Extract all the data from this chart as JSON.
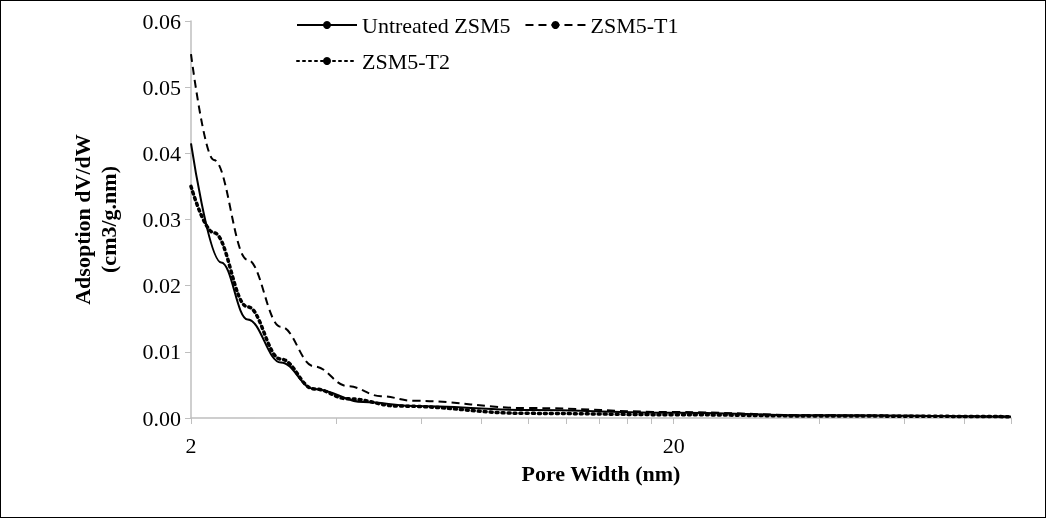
{
  "chart_data": {
    "type": "line",
    "xlabel": "Pore Width (nm)",
    "ylabel": "Adsoption dV/dW\n(cm3/g.nm)",
    "log": "x",
    "xlim": [
      2,
      100
    ],
    "xticks": [
      2,
      {
        "value": 4,
        "label": null
      },
      {
        "value": 6,
        "label": null
      },
      {
        "value": 8,
        "label": null
      },
      {
        "value": 10,
        "label": null
      },
      {
        "value": 12,
        "label": null
      },
      {
        "value": 14,
        "label": null
      },
      {
        "value": 16,
        "label": null
      },
      {
        "value": 18,
        "label": null
      },
      20,
      {
        "value": 40,
        "label": null
      },
      {
        "value": 60,
        "label": null
      },
      {
        "value": 80,
        "label": null
      },
      {
        "value": 100,
        "label": null
      }
    ],
    "ylim": [
      0,
      0.06
    ],
    "yticks": [
      {
        "value": 0,
        "label": "0.00"
      },
      {
        "value": 0.01,
        "label": "0.01"
      },
      {
        "value": 0.02,
        "label": "0.02"
      },
      {
        "value": 0.03,
        "label": "0.03"
      },
      {
        "value": 0.04,
        "label": "0.04"
      },
      {
        "value": 0.05,
        "label": "0.05"
      },
      {
        "value": 0.06,
        "label": "0.06"
      }
    ],
    "grid": false,
    "legend": "top",
    "marker": "none",
    "series": [
      {
        "name": "Untreated ZSM5",
        "color": "#000000",
        "line_style": "solid",
        "x": [
          2,
          2.31,
          2.62,
          3.07,
          3.6,
          4.55,
          5.78,
          10,
          20,
          40,
          100
        ],
        "values": [
          0.0415,
          0.0235,
          0.0149,
          0.0084,
          0.0044,
          0.0024,
          0.0018,
          0.0012,
          0.0008,
          0.0004,
          0.0002
        ]
      },
      {
        "name": "ZSM5-T1",
        "color": "#000000",
        "line_style": "dashed",
        "x": [
          2,
          2.23,
          2.62,
          3.07,
          3.6,
          4.23,
          4.95,
          5.78,
          10,
          20,
          40,
          100
        ],
        "values": [
          0.055,
          0.039,
          0.0239,
          0.0138,
          0.0078,
          0.0048,
          0.0033,
          0.0026,
          0.0015,
          0.0009,
          0.0004,
          0.0002
        ]
      },
      {
        "name": "ZSM5-T2",
        "color": "#000000",
        "line_style": "dotted",
        "x": [
          2,
          2.23,
          2.62,
          3.07,
          3.6,
          4.23,
          5.4,
          10,
          20,
          40,
          100
        ],
        "values": [
          0.035,
          0.028,
          0.0168,
          0.0089,
          0.0044,
          0.0029,
          0.0018,
          0.0007,
          0.0005,
          0.0003,
          0.0002
        ]
      }
    ]
  }
}
